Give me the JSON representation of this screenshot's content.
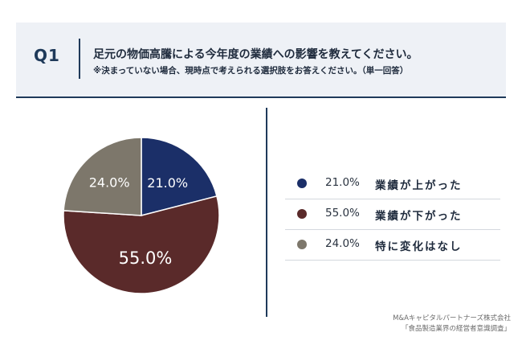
{
  "header": {
    "q_label": "Q1",
    "title": "足元の物価高騰による今年度の業績への影響を教えてください。",
    "note": "※決まっていない場合、現時点で考えられる選択肢をお答えください。（単一回答）"
  },
  "chart_data": {
    "type": "pie",
    "title": "",
    "slices": [
      {
        "label": "業績が上がった",
        "value": 21.0,
        "display": "21.0%",
        "color": "#1b2f68",
        "text_color": "#ffffff"
      },
      {
        "label": "業績が下がった",
        "value": 55.0,
        "display": "55.0%",
        "color": "#5a2a2a",
        "text_color": "#ffffff"
      },
      {
        "label": "特に変化はなし",
        "value": 24.0,
        "display": "24.0%",
        "color": "#7d776b",
        "text_color": "#ffffff"
      }
    ],
    "start_angle_deg": 0,
    "direction": "clockwise",
    "legend_placement": "right"
  },
  "source": {
    "line1": "M&Aキャピタルパートナーズ株式会社",
    "line2": "「食品製造業界の経営者意識調査」"
  }
}
